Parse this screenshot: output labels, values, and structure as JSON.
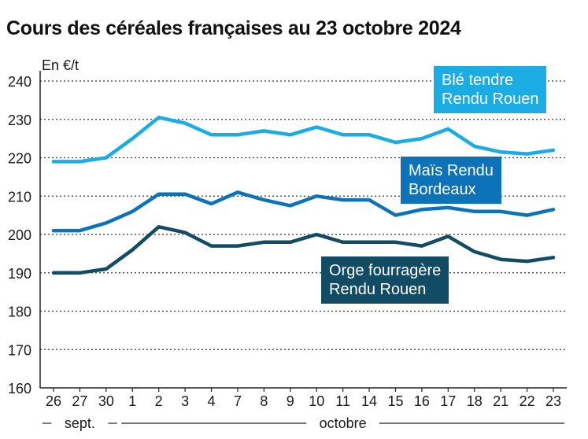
{
  "title": "Cours des céréales françaises au 23 octobre 2024",
  "colors": {
    "ble": "#1aace3",
    "mais": "#0c73b8",
    "orge": "#124b64",
    "grid": "#333333",
    "axis": "#222222"
  },
  "chart_data": {
    "type": "line",
    "title": "Cours des céréales françaises au 23 octobre 2024",
    "ylabel": "En €/t",
    "xlabel": "",
    "ylim": [
      160,
      240
    ],
    "yticks": [
      160,
      170,
      180,
      190,
      200,
      210,
      220,
      230,
      240
    ],
    "grid": true,
    "categories": [
      "26",
      "27",
      "30",
      "1",
      "2",
      "3",
      "4",
      "7",
      "8",
      "9",
      "10",
      "11",
      "14",
      "15",
      "16",
      "17",
      "18",
      "21",
      "22",
      "23"
    ],
    "month_labels": [
      {
        "label": "sept.",
        "from_index": 0,
        "to_index": 2
      },
      {
        "label": "octobre",
        "from_index": 3,
        "to_index": 19
      }
    ],
    "series": [
      {
        "name": "Blé tendre Rendu Rouen",
        "name_lines": [
          "Blé tendre",
          "Rendu Rouen"
        ],
        "color_key": "ble",
        "values": [
          219,
          219,
          220,
          225,
          230.5,
          229,
          226,
          226,
          227,
          226,
          228,
          226,
          226,
          224,
          225,
          227.5,
          223,
          221.5,
          221,
          222
        ]
      },
      {
        "name": "Maïs Rendu Bordeaux",
        "name_lines": [
          "Maïs Rendu",
          "Bordeaux"
        ],
        "color_key": "mais",
        "values": [
          201,
          201,
          203,
          206,
          210.5,
          210.5,
          208,
          211,
          209,
          207.5,
          210,
          209,
          209,
          205,
          206.5,
          207,
          206,
          206,
          205,
          206.5
        ]
      },
      {
        "name": "Orge fourragère Rendu Rouen",
        "name_lines": [
          "Orge fourragère",
          "Rendu Rouen"
        ],
        "color_key": "orge",
        "values": [
          190,
          190,
          191,
          196,
          202,
          200.5,
          197,
          197,
          198,
          198,
          200,
          198,
          198,
          198,
          197,
          199.5,
          195.5,
          193.5,
          193,
          194
        ]
      }
    ]
  }
}
